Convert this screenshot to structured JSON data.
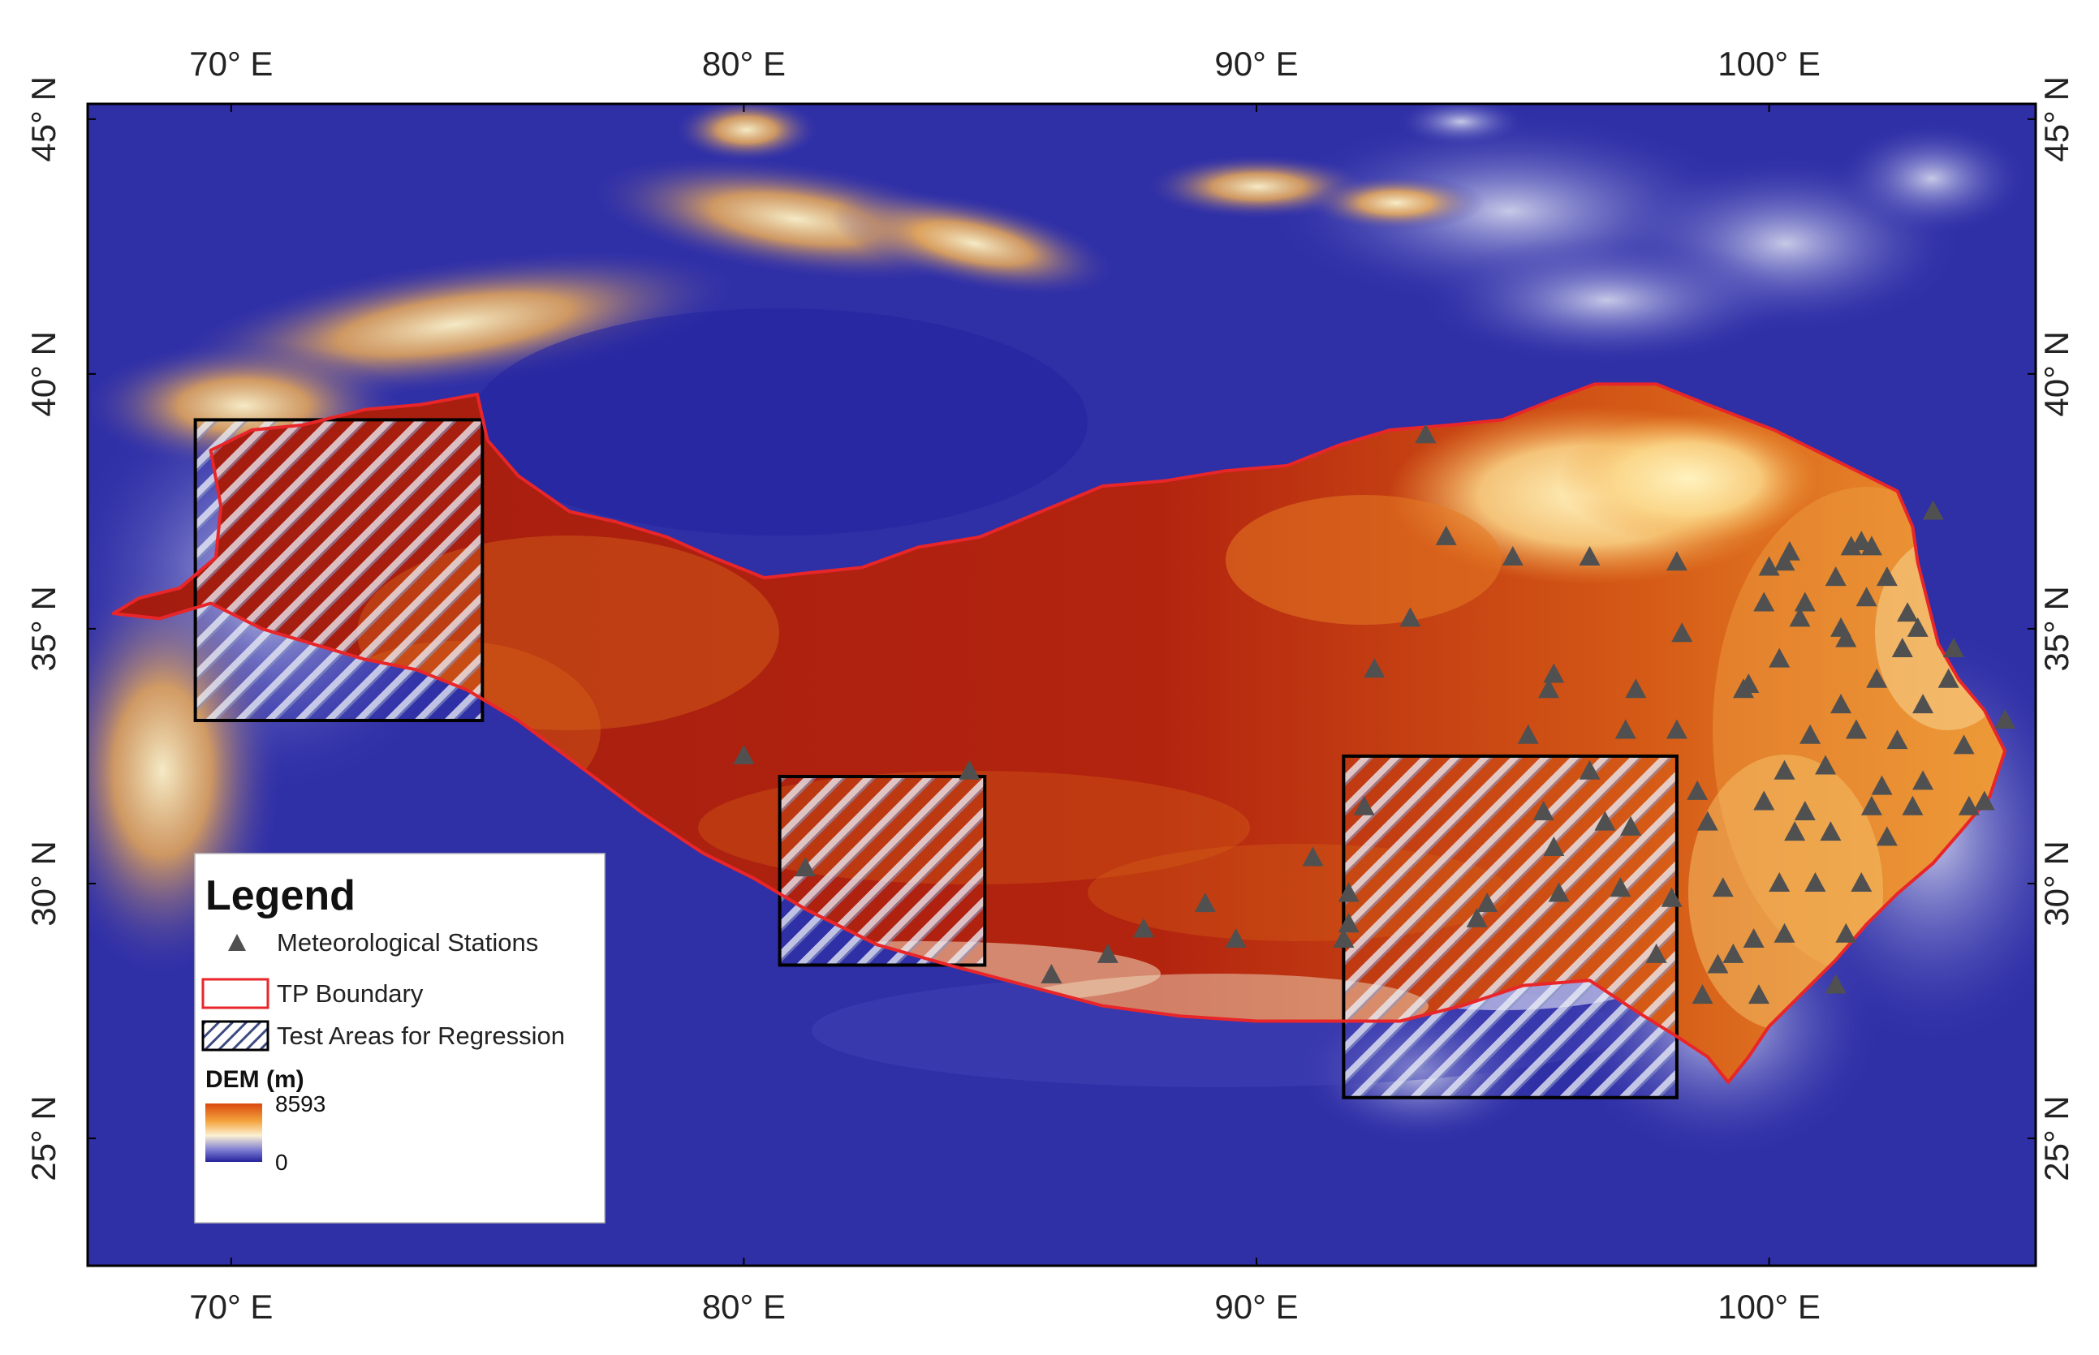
{
  "map": {
    "lon_range": [
      67.2,
      105.2
    ],
    "lat_range": [
      22.5,
      45.3
    ],
    "x_ticks": [
      {
        "value": 70,
        "label": "70° E"
      },
      {
        "value": 80,
        "label": "80° E"
      },
      {
        "value": 90,
        "label": "90° E"
      },
      {
        "value": 100,
        "label": "100° E"
      }
    ],
    "y_ticks": [
      {
        "value": 45,
        "label": "45° N"
      },
      {
        "value": 40,
        "label": "40° N"
      },
      {
        "value": 35,
        "label": "35° N"
      },
      {
        "value": 30,
        "label": "30° N"
      },
      {
        "value": 25,
        "label": "25° N"
      }
    ]
  },
  "legend": {
    "title": "Legend",
    "stations_label": "Meteorological Stations",
    "boundary_label": "TP Boundary",
    "test_areas_label": "Test Areas for Regression",
    "dem_title": "DEM (m)",
    "dem_max": "8593",
    "dem_min": "0"
  },
  "colors": {
    "boundary": "#e8262a",
    "station": "#505050",
    "lowland": "#2b2ba8",
    "highland": "#9b1b0f"
  },
  "test_areas": [
    {
      "lon": [
        69.3,
        74.9
      ],
      "lat": [
        33.2,
        39.1
      ]
    },
    {
      "lon": [
        80.7,
        84.7
      ],
      "lat": [
        28.4,
        32.1
      ]
    },
    {
      "lon": [
        91.7,
        98.2
      ],
      "lat": [
        25.8,
        32.5
      ]
    }
  ],
  "tp_boundary": [
    [
      68.6,
      35.2
    ],
    [
      69.6,
      35.5
    ],
    [
      70.6,
      35.0
    ],
    [
      71.6,
      34.7
    ],
    [
      72.6,
      34.4
    ],
    [
      73.6,
      34.2
    ],
    [
      74.6,
      33.8
    ],
    [
      75.6,
      33.2
    ],
    [
      76.8,
      32.3
    ],
    [
      78.0,
      31.4
    ],
    [
      79.2,
      30.6
    ],
    [
      80.2,
      30.1
    ],
    [
      81.2,
      29.5
    ],
    [
      82.6,
      28.8
    ],
    [
      84.0,
      28.4
    ],
    [
      85.5,
      28.0
    ],
    [
      87.0,
      27.6
    ],
    [
      88.5,
      27.4
    ],
    [
      90.0,
      27.3
    ],
    [
      91.5,
      27.3
    ],
    [
      92.8,
      27.3
    ],
    [
      94.0,
      27.6
    ],
    [
      95.2,
      28.0
    ],
    [
      96.5,
      28.1
    ],
    [
      97.4,
      27.5
    ],
    [
      98.2,
      27.0
    ],
    [
      98.8,
      26.6
    ],
    [
      99.2,
      26.1
    ],
    [
      99.6,
      26.6
    ],
    [
      100.0,
      27.2
    ],
    [
      100.6,
      27.8
    ],
    [
      101.3,
      28.5
    ],
    [
      101.9,
      29.2
    ],
    [
      102.5,
      29.8
    ],
    [
      103.2,
      30.4
    ],
    [
      103.8,
      31.1
    ],
    [
      104.3,
      31.7
    ],
    [
      104.6,
      32.6
    ],
    [
      104.2,
      33.4
    ],
    [
      103.7,
      34.0
    ],
    [
      103.3,
      34.7
    ],
    [
      103.1,
      35.5
    ],
    [
      102.9,
      36.3
    ],
    [
      102.8,
      37.0
    ],
    [
      102.5,
      37.7
    ],
    [
      101.3,
      38.3
    ],
    [
      100.1,
      38.9
    ],
    [
      98.8,
      39.4
    ],
    [
      97.8,
      39.8
    ],
    [
      96.6,
      39.8
    ],
    [
      95.8,
      39.5
    ],
    [
      94.8,
      39.1
    ],
    [
      93.8,
      39.0
    ],
    [
      92.6,
      38.9
    ],
    [
      91.6,
      38.6
    ],
    [
      90.6,
      38.2
    ],
    [
      89.4,
      38.1
    ],
    [
      88.2,
      37.9
    ],
    [
      87.0,
      37.8
    ],
    [
      85.8,
      37.3
    ],
    [
      84.6,
      36.8
    ],
    [
      83.4,
      36.6
    ],
    [
      82.3,
      36.2
    ],
    [
      81.3,
      36.1
    ],
    [
      80.4,
      36.0
    ],
    [
      79.4,
      36.4
    ],
    [
      78.5,
      36.8
    ],
    [
      77.5,
      37.1
    ],
    [
      76.6,
      37.3
    ],
    [
      75.6,
      38.0
    ],
    [
      75.0,
      38.7
    ],
    [
      74.8,
      39.6
    ],
    [
      73.7,
      39.4
    ],
    [
      72.6,
      39.3
    ],
    [
      71.4,
      39.0
    ],
    [
      70.4,
      38.9
    ],
    [
      69.6,
      38.5
    ],
    [
      69.8,
      37.4
    ],
    [
      69.7,
      36.4
    ],
    [
      69.0,
      35.8
    ],
    [
      68.2,
      35.6
    ],
    [
      67.7,
      35.3
    ],
    [
      68.6,
      35.2
    ]
  ],
  "stations": [
    [
      80.0,
      32.5
    ],
    [
      84.4,
      32.2
    ],
    [
      81.2,
      30.3
    ],
    [
      86.0,
      28.2
    ],
    [
      87.1,
      28.6
    ],
    [
      87.8,
      29.1
    ],
    [
      89.0,
      29.6
    ],
    [
      89.6,
      28.9
    ],
    [
      91.1,
      30.5
    ],
    [
      91.8,
      29.8
    ],
    [
      91.8,
      29.2
    ],
    [
      91.7,
      28.9
    ],
    [
      92.1,
      31.5
    ],
    [
      92.3,
      34.2
    ],
    [
      93.0,
      35.2
    ],
    [
      93.3,
      38.8
    ],
    [
      93.7,
      36.8
    ],
    [
      94.3,
      29.3
    ],
    [
      94.5,
      29.6
    ],
    [
      95.0,
      36.4
    ],
    [
      95.3,
      32.9
    ],
    [
      95.6,
      31.4
    ],
    [
      95.7,
      33.8
    ],
    [
      95.8,
      34.1
    ],
    [
      95.8,
      30.7
    ],
    [
      95.9,
      29.8
    ],
    [
      96.5,
      36.4
    ],
    [
      96.5,
      32.2
    ],
    [
      96.8,
      31.2
    ],
    [
      97.1,
      29.9
    ],
    [
      97.2,
      33.0
    ],
    [
      97.3,
      31.1
    ],
    [
      97.4,
      33.8
    ],
    [
      97.8,
      28.6
    ],
    [
      98.1,
      29.7
    ],
    [
      98.2,
      33.0
    ],
    [
      98.2,
      36.3
    ],
    [
      98.3,
      34.9
    ],
    [
      98.6,
      31.8
    ],
    [
      98.7,
      27.8
    ],
    [
      98.8,
      31.2
    ],
    [
      99.0,
      28.4
    ],
    [
      99.1,
      29.9
    ],
    [
      99.3,
      28.6
    ],
    [
      99.5,
      33.8
    ],
    [
      99.6,
      33.9
    ],
    [
      99.7,
      28.9
    ],
    [
      99.8,
      27.8
    ],
    [
      99.9,
      31.6
    ],
    [
      99.9,
      35.5
    ],
    [
      100.0,
      36.2
    ],
    [
      100.2,
      34.4
    ],
    [
      100.2,
      30.0
    ],
    [
      100.3,
      32.2
    ],
    [
      100.3,
      29.0
    ],
    [
      100.3,
      36.3
    ],
    [
      100.4,
      36.5
    ],
    [
      100.5,
      31.0
    ],
    [
      100.6,
      35.2
    ],
    [
      100.7,
      31.4
    ],
    [
      100.7,
      35.5
    ],
    [
      100.8,
      32.9
    ],
    [
      100.9,
      30.0
    ],
    [
      101.1,
      32.3
    ],
    [
      101.2,
      31.0
    ],
    [
      101.3,
      36.0
    ],
    [
      101.3,
      28.0
    ],
    [
      101.4,
      33.5
    ],
    [
      101.4,
      35.0
    ],
    [
      101.5,
      34.8
    ],
    [
      101.5,
      29.0
    ],
    [
      101.6,
      36.6
    ],
    [
      101.7,
      33.0
    ],
    [
      101.8,
      36.7
    ],
    [
      101.8,
      30.0
    ],
    [
      101.9,
      35.6
    ],
    [
      102.0,
      36.6
    ],
    [
      102.0,
      31.5
    ],
    [
      102.1,
      34.0
    ],
    [
      102.2,
      31.9
    ],
    [
      102.3,
      36.0
    ],
    [
      102.3,
      30.9
    ],
    [
      102.5,
      32.8
    ],
    [
      102.6,
      34.6
    ],
    [
      102.7,
      35.3
    ],
    [
      102.8,
      31.5
    ],
    [
      102.9,
      35.0
    ],
    [
      103.0,
      33.5
    ],
    [
      103.0,
      32.0
    ],
    [
      103.2,
      37.3
    ],
    [
      103.5,
      34.0
    ],
    [
      103.6,
      34.6
    ],
    [
      103.8,
      32.7
    ],
    [
      103.9,
      31.5
    ],
    [
      104.2,
      31.6
    ],
    [
      104.6,
      33.2
    ]
  ]
}
